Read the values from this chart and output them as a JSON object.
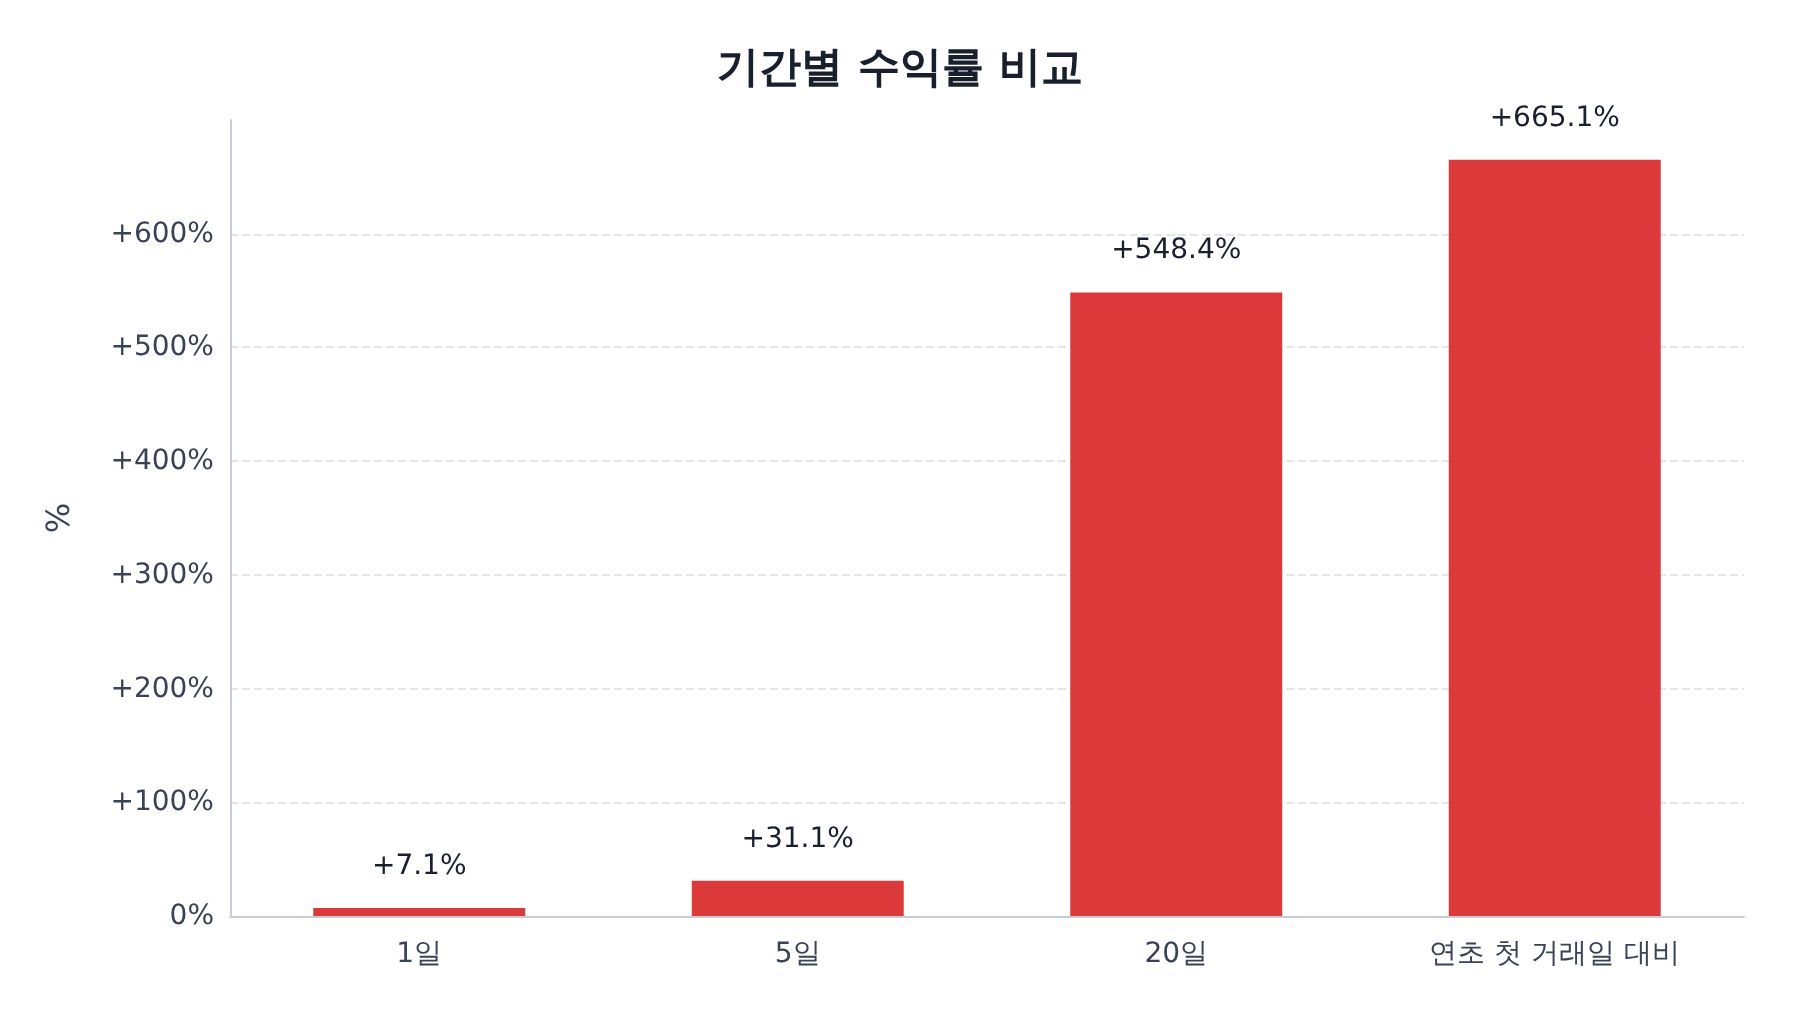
{
  "chart_data": {
    "type": "bar",
    "title": "기간별 수익률 비교",
    "ylabel": "%",
    "categories": [
      "1일",
      "5일",
      "20일",
      "연초 첫 거래일 대비"
    ],
    "values": [
      7.1,
      31.1,
      548.4,
      665.1
    ],
    "value_labels": [
      "+7.1%",
      "+31.1%",
      "+548.4%",
      "+665.1%"
    ],
    "color": "#dc3a3a",
    "ylim": [
      0,
      700
    ],
    "yticks": [
      {
        "value": 0,
        "label": "0%"
      },
      {
        "value": 100,
        "label": "+100%"
      },
      {
        "value": 200,
        "label": "+200%"
      },
      {
        "value": 300,
        "label": "+300%"
      },
      {
        "value": 400,
        "label": "+400%"
      },
      {
        "value": 500,
        "label": "+500%"
      },
      {
        "value": 600,
        "label": "+600%"
      }
    ],
    "grid": "y"
  }
}
